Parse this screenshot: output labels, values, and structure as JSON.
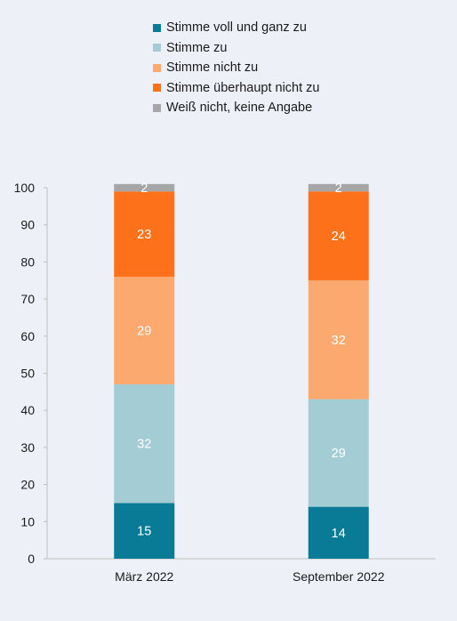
{
  "chart_data": {
    "type": "bar",
    "stacked": true,
    "categories": [
      "März 2022",
      "September 2022"
    ],
    "series": [
      {
        "name": "Stimme voll und ganz zu",
        "color": "#0a7b96",
        "values": [
          15,
          14
        ]
      },
      {
        "name": "Stimme zu",
        "color": "#a3ccd5",
        "values": [
          32,
          29
        ]
      },
      {
        "name": "Stimme nicht zu",
        "color": "#fca96f",
        "values": [
          29,
          32
        ]
      },
      {
        "name": "Stimme überhaupt nicht zu",
        "color": "#fc711a",
        "values": [
          23,
          24
        ]
      },
      {
        "name": "Weiß nicht, keine Angabe",
        "color": "#a6a6a6",
        "values": [
          2,
          2
        ]
      }
    ],
    "ylim": [
      0,
      100
    ],
    "yticks": [
      0,
      10,
      20,
      30,
      40,
      50,
      60,
      70,
      80,
      90,
      100
    ],
    "legend_position": "top",
    "grid": false
  },
  "colors": {
    "background": "#edf1f7",
    "axis": "#bfbfbf",
    "text": "#1a1a1a",
    "bar_label": "#ffffff"
  }
}
